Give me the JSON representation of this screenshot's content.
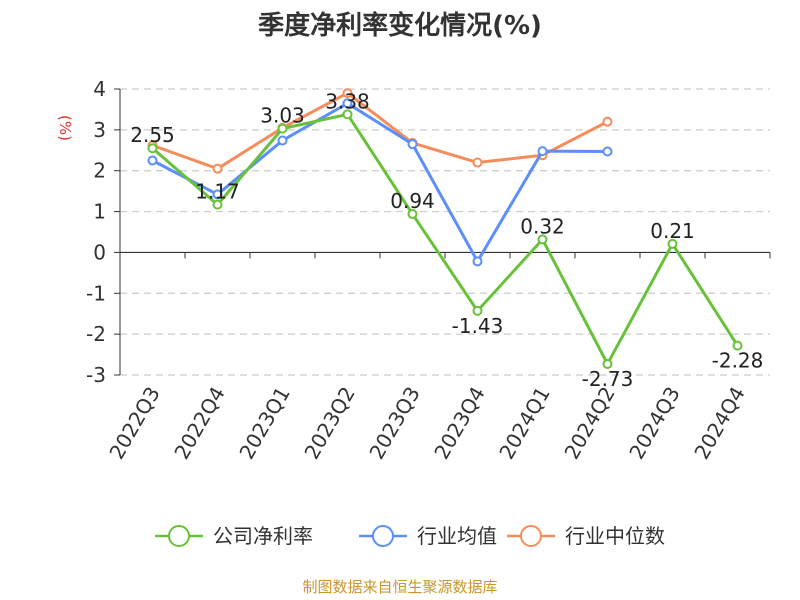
{
  "chart_data": {
    "type": "line",
    "title": "季度净利率变化情况(%)",
    "ylabel": "(%)",
    "ylim": [
      -3,
      4
    ],
    "yticks": [
      4,
      3,
      2,
      1,
      0,
      -1,
      -2,
      -3
    ],
    "grid": true,
    "legend_position": "bottom",
    "categories": [
      "2022Q3",
      "2022Q4",
      "2023Q1",
      "2023Q2",
      "2023Q3",
      "2023Q4",
      "2024Q1",
      "2024Q2",
      "2024Q3",
      "2024Q4"
    ],
    "series": [
      {
        "name": "公司净利率",
        "color": "#67c23a",
        "values": [
          2.55,
          1.17,
          3.03,
          3.38,
          0.94,
          -1.43,
          0.32,
          -2.73,
          0.21,
          -2.28
        ],
        "show_labels": true
      },
      {
        "name": "行业均值",
        "color": "#5b8ff9",
        "values": [
          2.25,
          1.42,
          2.74,
          3.65,
          2.65,
          -0.22,
          2.48,
          2.47,
          null,
          null
        ],
        "show_labels": false
      },
      {
        "name": "行业中位数",
        "color": "#f58c5b",
        "values": [
          2.62,
          2.05,
          3.05,
          3.9,
          2.68,
          2.2,
          2.38,
          3.2,
          null,
          null
        ],
        "show_labels": false
      }
    ],
    "source": "制图数据来自恒生聚源数据库"
  },
  "colors": {
    "unit_label": "#e0302a",
    "source_text": "#c8962a",
    "grid": "#cccccc",
    "axis": "#333333"
  }
}
